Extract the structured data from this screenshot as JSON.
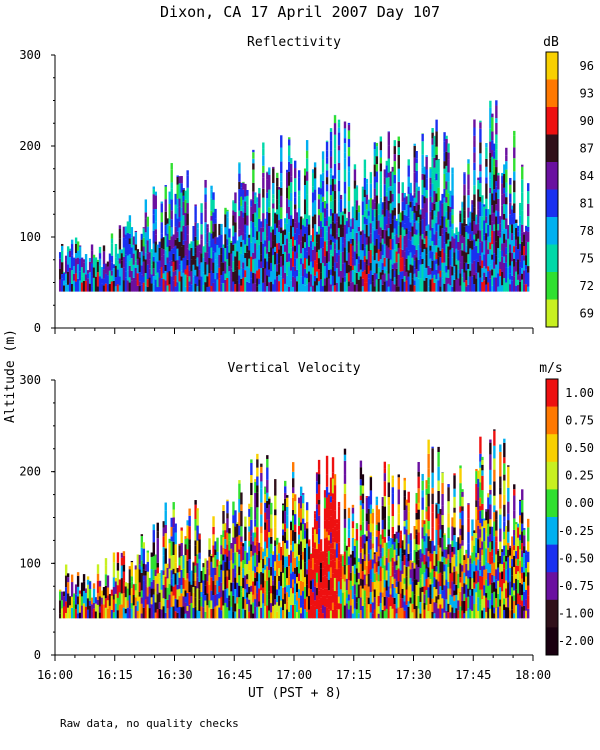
{
  "title": "Dixon, CA 17 April 2007  Day 107",
  "y_axis_label": "Altitude (m)",
  "x_axis_label": "UT  (PST + 8)",
  "footnote": "Raw data, no quality checks",
  "chart_data": [
    {
      "type": "heatmap",
      "title": "Reflectivity",
      "colorbar_unit": "dB",
      "colorbar_ticks": [
        "96",
        "93",
        "90",
        "87",
        "84",
        "81",
        "78",
        "75",
        "72",
        "69"
      ],
      "colorbar_colors": [
        "#f8d000",
        "#ff7800",
        "#ee1010",
        "#30101a",
        "#6a10a0",
        "#1a30f0",
        "#00b0f0",
        "#00d8a8",
        "#30e030",
        "#c8f020"
      ],
      "ylim": [
        0,
        300
      ],
      "y_ticks": [
        "0",
        "100",
        "200",
        "300"
      ],
      "x_ticks": [
        "16:00",
        "16:15",
        "16:30",
        "16:45",
        "17:00",
        "17:15",
        "17:30",
        "17:45",
        "18:00"
      ],
      "xlim": [
        "16:00",
        "18:00"
      ],
      "echo_base_m": 40,
      "echo_top_profile": {
        "times": [
          "16:00",
          "16:10",
          "16:20",
          "16:30",
          "16:40",
          "16:50",
          "17:00",
          "17:05",
          "17:10",
          "17:15",
          "17:20",
          "17:30",
          "17:35",
          "17:40",
          "17:50",
          "17:55"
        ],
        "tops_m": [
          100,
          100,
          130,
          190,
          160,
          200,
          220,
          210,
          240,
          220,
          220,
          210,
          260,
          200,
          260,
          220
        ]
      }
    },
    {
      "type": "heatmap",
      "title": "Vertical Velocity",
      "colorbar_unit": "m/s",
      "colorbar_ticks": [
        "1.00",
        "0.75",
        "0.50",
        "0.25",
        "0.00",
        "-0.25",
        "-0.50",
        "-0.75",
        "-1.00",
        "-2.00"
      ],
      "colorbar_colors": [
        "#ee1010",
        "#ff7800",
        "#f8d000",
        "#c8f020",
        "#30e030",
        "#00b0f0",
        "#1a30f0",
        "#6a10a0",
        "#30101a",
        "#1a0010"
      ],
      "ylim": [
        0,
        300
      ],
      "y_ticks": [
        "0",
        "100",
        "200",
        "300"
      ],
      "x_ticks": [
        "16:00",
        "16:15",
        "16:30",
        "16:45",
        "17:00",
        "17:15",
        "17:30",
        "17:45",
        "18:00"
      ],
      "xlim": [
        "16:00",
        "18:00"
      ],
      "echo_base_m": 40,
      "echo_top_profile": {
        "times": [
          "16:00",
          "16:10",
          "16:20",
          "16:30",
          "16:40",
          "16:50",
          "17:00",
          "17:05",
          "17:10",
          "17:15",
          "17:20",
          "17:30",
          "17:35",
          "17:40",
          "17:50",
          "17:55"
        ],
        "tops_m": [
          100,
          100,
          130,
          190,
          160,
          220,
          220,
          210,
          240,
          220,
          220,
          210,
          260,
          200,
          260,
          220
        ]
      }
    }
  ]
}
